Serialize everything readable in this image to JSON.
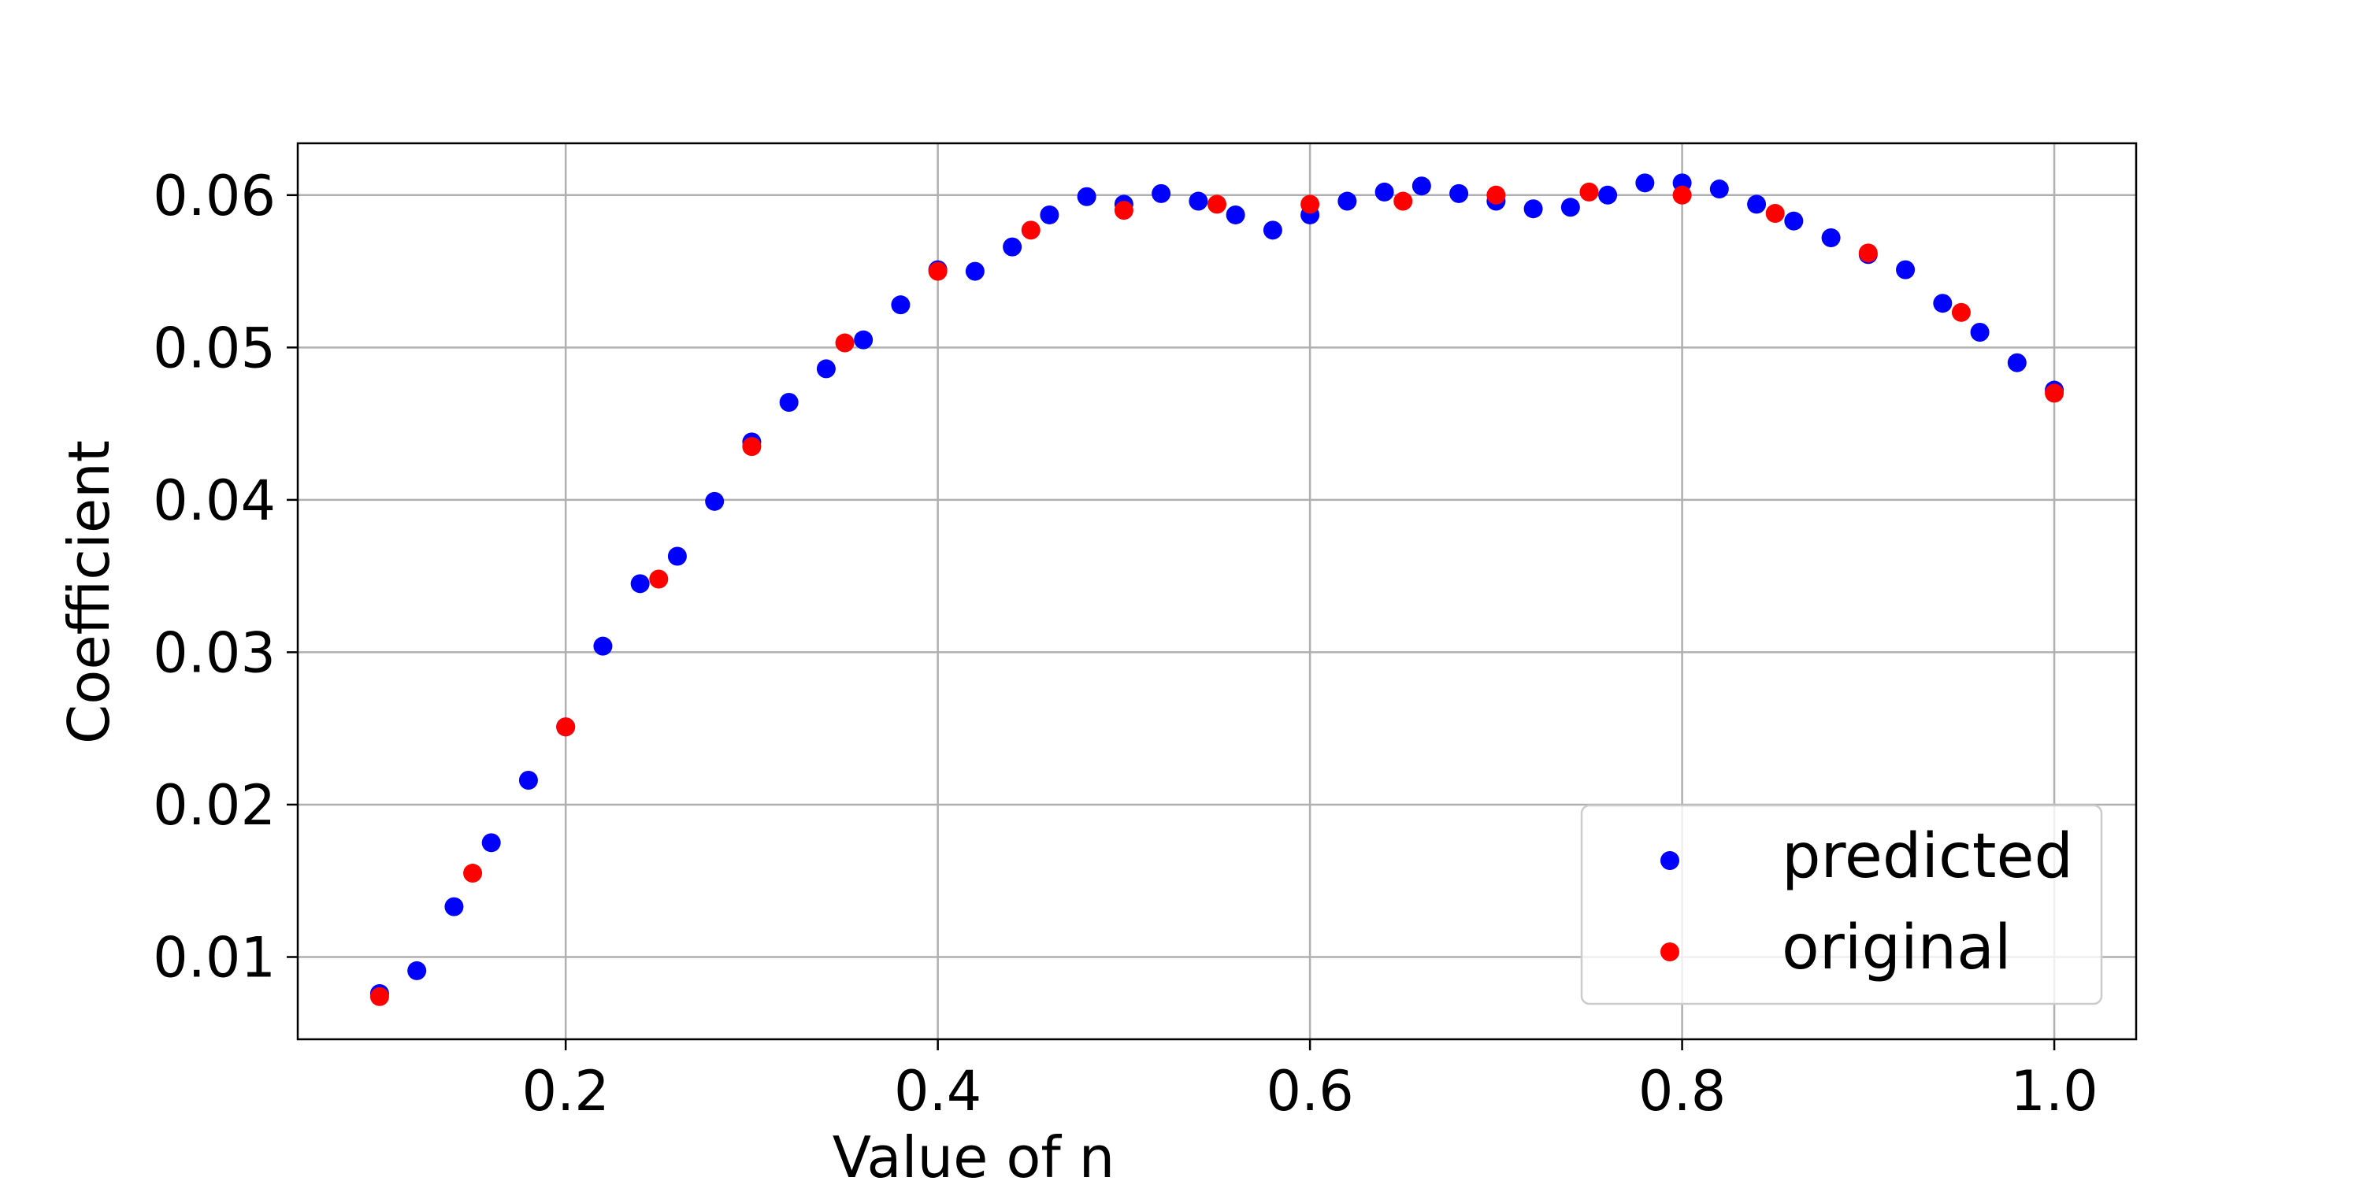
{
  "chart_data": {
    "type": "scatter",
    "title": "",
    "xlabel": "Value of n",
    "ylabel": "Coefficient",
    "xlim": [
      0.056,
      1.044
    ],
    "ylim": [
      0.0046,
      0.0634
    ],
    "xticks": [
      0.2,
      0.4,
      0.6,
      0.8,
      1.0
    ],
    "xtick_labels": [
      "0.2",
      "0.4",
      "0.6",
      "0.8",
      "1.0"
    ],
    "yticks": [
      0.01,
      0.02,
      0.03,
      0.04,
      0.05,
      0.06
    ],
    "ytick_labels": [
      "0.01",
      "0.02",
      "0.03",
      "0.04",
      "0.05",
      "0.06"
    ],
    "grid": true,
    "legend_position": "lower-right",
    "series": [
      {
        "name": "predicted",
        "color": "#0000ff",
        "x": [
          0.1,
          0.12,
          0.14,
          0.16,
          0.18,
          0.2,
          0.22,
          0.24,
          0.26,
          0.28,
          0.3,
          0.32,
          0.34,
          0.36,
          0.38,
          0.4,
          0.42,
          0.44,
          0.46,
          0.48,
          0.5,
          0.52,
          0.54,
          0.56,
          0.58,
          0.6,
          0.62,
          0.64,
          0.66,
          0.68,
          0.7,
          0.72,
          0.74,
          0.76,
          0.78,
          0.8,
          0.82,
          0.84,
          0.86,
          0.88,
          0.9,
          0.92,
          0.94,
          0.96,
          0.98,
          1.0
        ],
        "y": [
          0.0076,
          0.0091,
          0.0133,
          0.0175,
          0.0216,
          0.0251,
          0.0304,
          0.0345,
          0.0363,
          0.0399,
          0.0438,
          0.0464,
          0.0486,
          0.0505,
          0.0528,
          0.0551,
          0.055,
          0.0566,
          0.0587,
          0.0599,
          0.0594,
          0.0601,
          0.0596,
          0.0587,
          0.0577,
          0.0587,
          0.0596,
          0.0602,
          0.0606,
          0.0601,
          0.0596,
          0.0591,
          0.0592,
          0.06,
          0.0608,
          0.0608,
          0.0604,
          0.0594,
          0.0583,
          0.0572,
          0.0561,
          0.0551,
          0.0529,
          0.051,
          0.049,
          0.0472
        ]
      },
      {
        "name": "original",
        "color": "#ff0000",
        "x": [
          0.1,
          0.15,
          0.2,
          0.25,
          0.3,
          0.35,
          0.4,
          0.45,
          0.5,
          0.55,
          0.6,
          0.65,
          0.7,
          0.75,
          0.8,
          0.85,
          0.9,
          0.95,
          1.0
        ],
        "y": [
          0.0074,
          0.0155,
          0.0251,
          0.0348,
          0.0435,
          0.0503,
          0.055,
          0.0577,
          0.059,
          0.0594,
          0.0594,
          0.0596,
          0.06,
          0.0602,
          0.06,
          0.0588,
          0.0562,
          0.0523,
          0.047
        ]
      }
    ]
  }
}
